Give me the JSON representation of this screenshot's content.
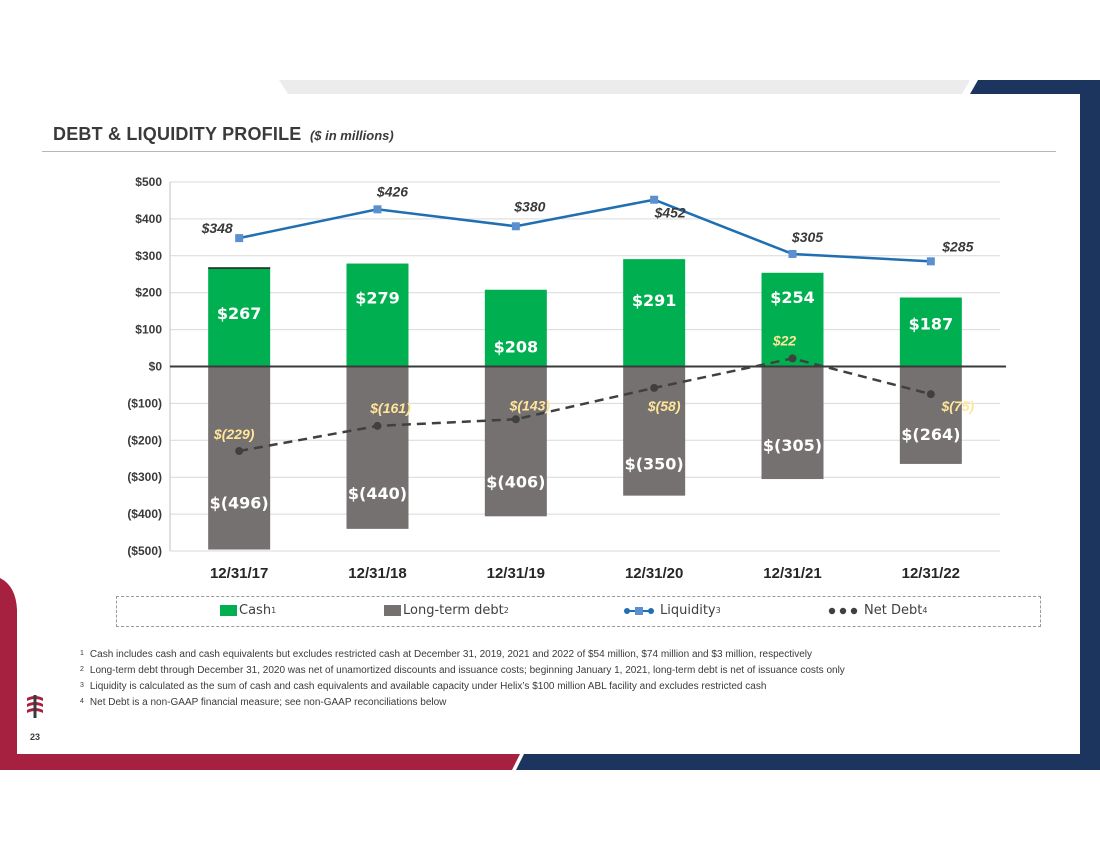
{
  "slide": {
    "title": "DEBT & LIQUIDITY PROFILE",
    "subtitle": "($ in millions)",
    "page_number": "23",
    "colors": {
      "navy": "#1c355e",
      "red": "#a6213f",
      "gray_band": "#ececec"
    }
  },
  "chart_data": {
    "type": "bar",
    "categories": [
      "12/31/17",
      "12/31/18",
      "12/31/19",
      "12/31/20",
      "12/31/21",
      "12/31/22"
    ],
    "ylim": [
      -500,
      500
    ],
    "ytick_values": [
      500,
      400,
      300,
      200,
      100,
      0,
      -100,
      -200,
      -300,
      -400,
      -500
    ],
    "ytick_labels": [
      "$500",
      "$400",
      "$300",
      "$200",
      "$100",
      "$0",
      "($100)",
      "($200)",
      "($300)",
      "($400)",
      "($500)"
    ],
    "grid": true,
    "legend_position": "bottom",
    "series": [
      {
        "name": "Cash",
        "sup": "1",
        "type": "bar",
        "color": "#00b050",
        "values": [
          267,
          279,
          208,
          291,
          254,
          187
        ],
        "labels": [
          "$267",
          "$279",
          "$208",
          "$291",
          "$254",
          "$187"
        ]
      },
      {
        "name": "Long-term debt",
        "sup": "2",
        "type": "bar",
        "color": "#767171",
        "values": [
          -496,
          -440,
          -406,
          -350,
          -305,
          -264
        ],
        "labels": [
          "$(496)",
          "$(440)",
          "$(406)",
          "$(350)",
          "$(305)",
          "$(264)"
        ]
      },
      {
        "name": "Liquidity",
        "sup": "3",
        "type": "line",
        "color": "#1f6fb2",
        "marker_color": "#5b8fd0",
        "values": [
          348,
          426,
          380,
          452,
          305,
          285
        ],
        "labels": [
          "$348",
          "$426",
          "$380",
          "$452",
          "$305",
          "$285"
        ]
      },
      {
        "name": "Net Debt",
        "sup": "4",
        "type": "line",
        "style": "dashed",
        "color": "#404040",
        "values": [
          -229,
          -161,
          -143,
          -58,
          22,
          -75
        ],
        "labels": [
          "$(229)",
          "$(161)",
          "$(143)",
          "$(58)",
          "$22",
          "$(75)"
        ]
      }
    ]
  },
  "footnotes": [
    {
      "sup": "1",
      "text": "Cash includes cash and cash equivalents but excludes restricted cash at December 31, 2019, 2021 and 2022 of $54 million, $74 million and $3 million, respectively"
    },
    {
      "sup": "2",
      "text": "Long-term debt through December 31, 2020 was net of unamortized discounts and issuance costs; beginning January 1, 2021, long-term debt is net of issuance costs only"
    },
    {
      "sup": "3",
      "text": "Liquidity is calculated as the sum of cash and cash equivalents and available capacity under Helix’s $100 million ABL facility and excludes restricted cash"
    },
    {
      "sup": "4",
      "text": "Net Debt is a non-GAAP financial measure; see non-GAAP reconciliations below"
    }
  ]
}
